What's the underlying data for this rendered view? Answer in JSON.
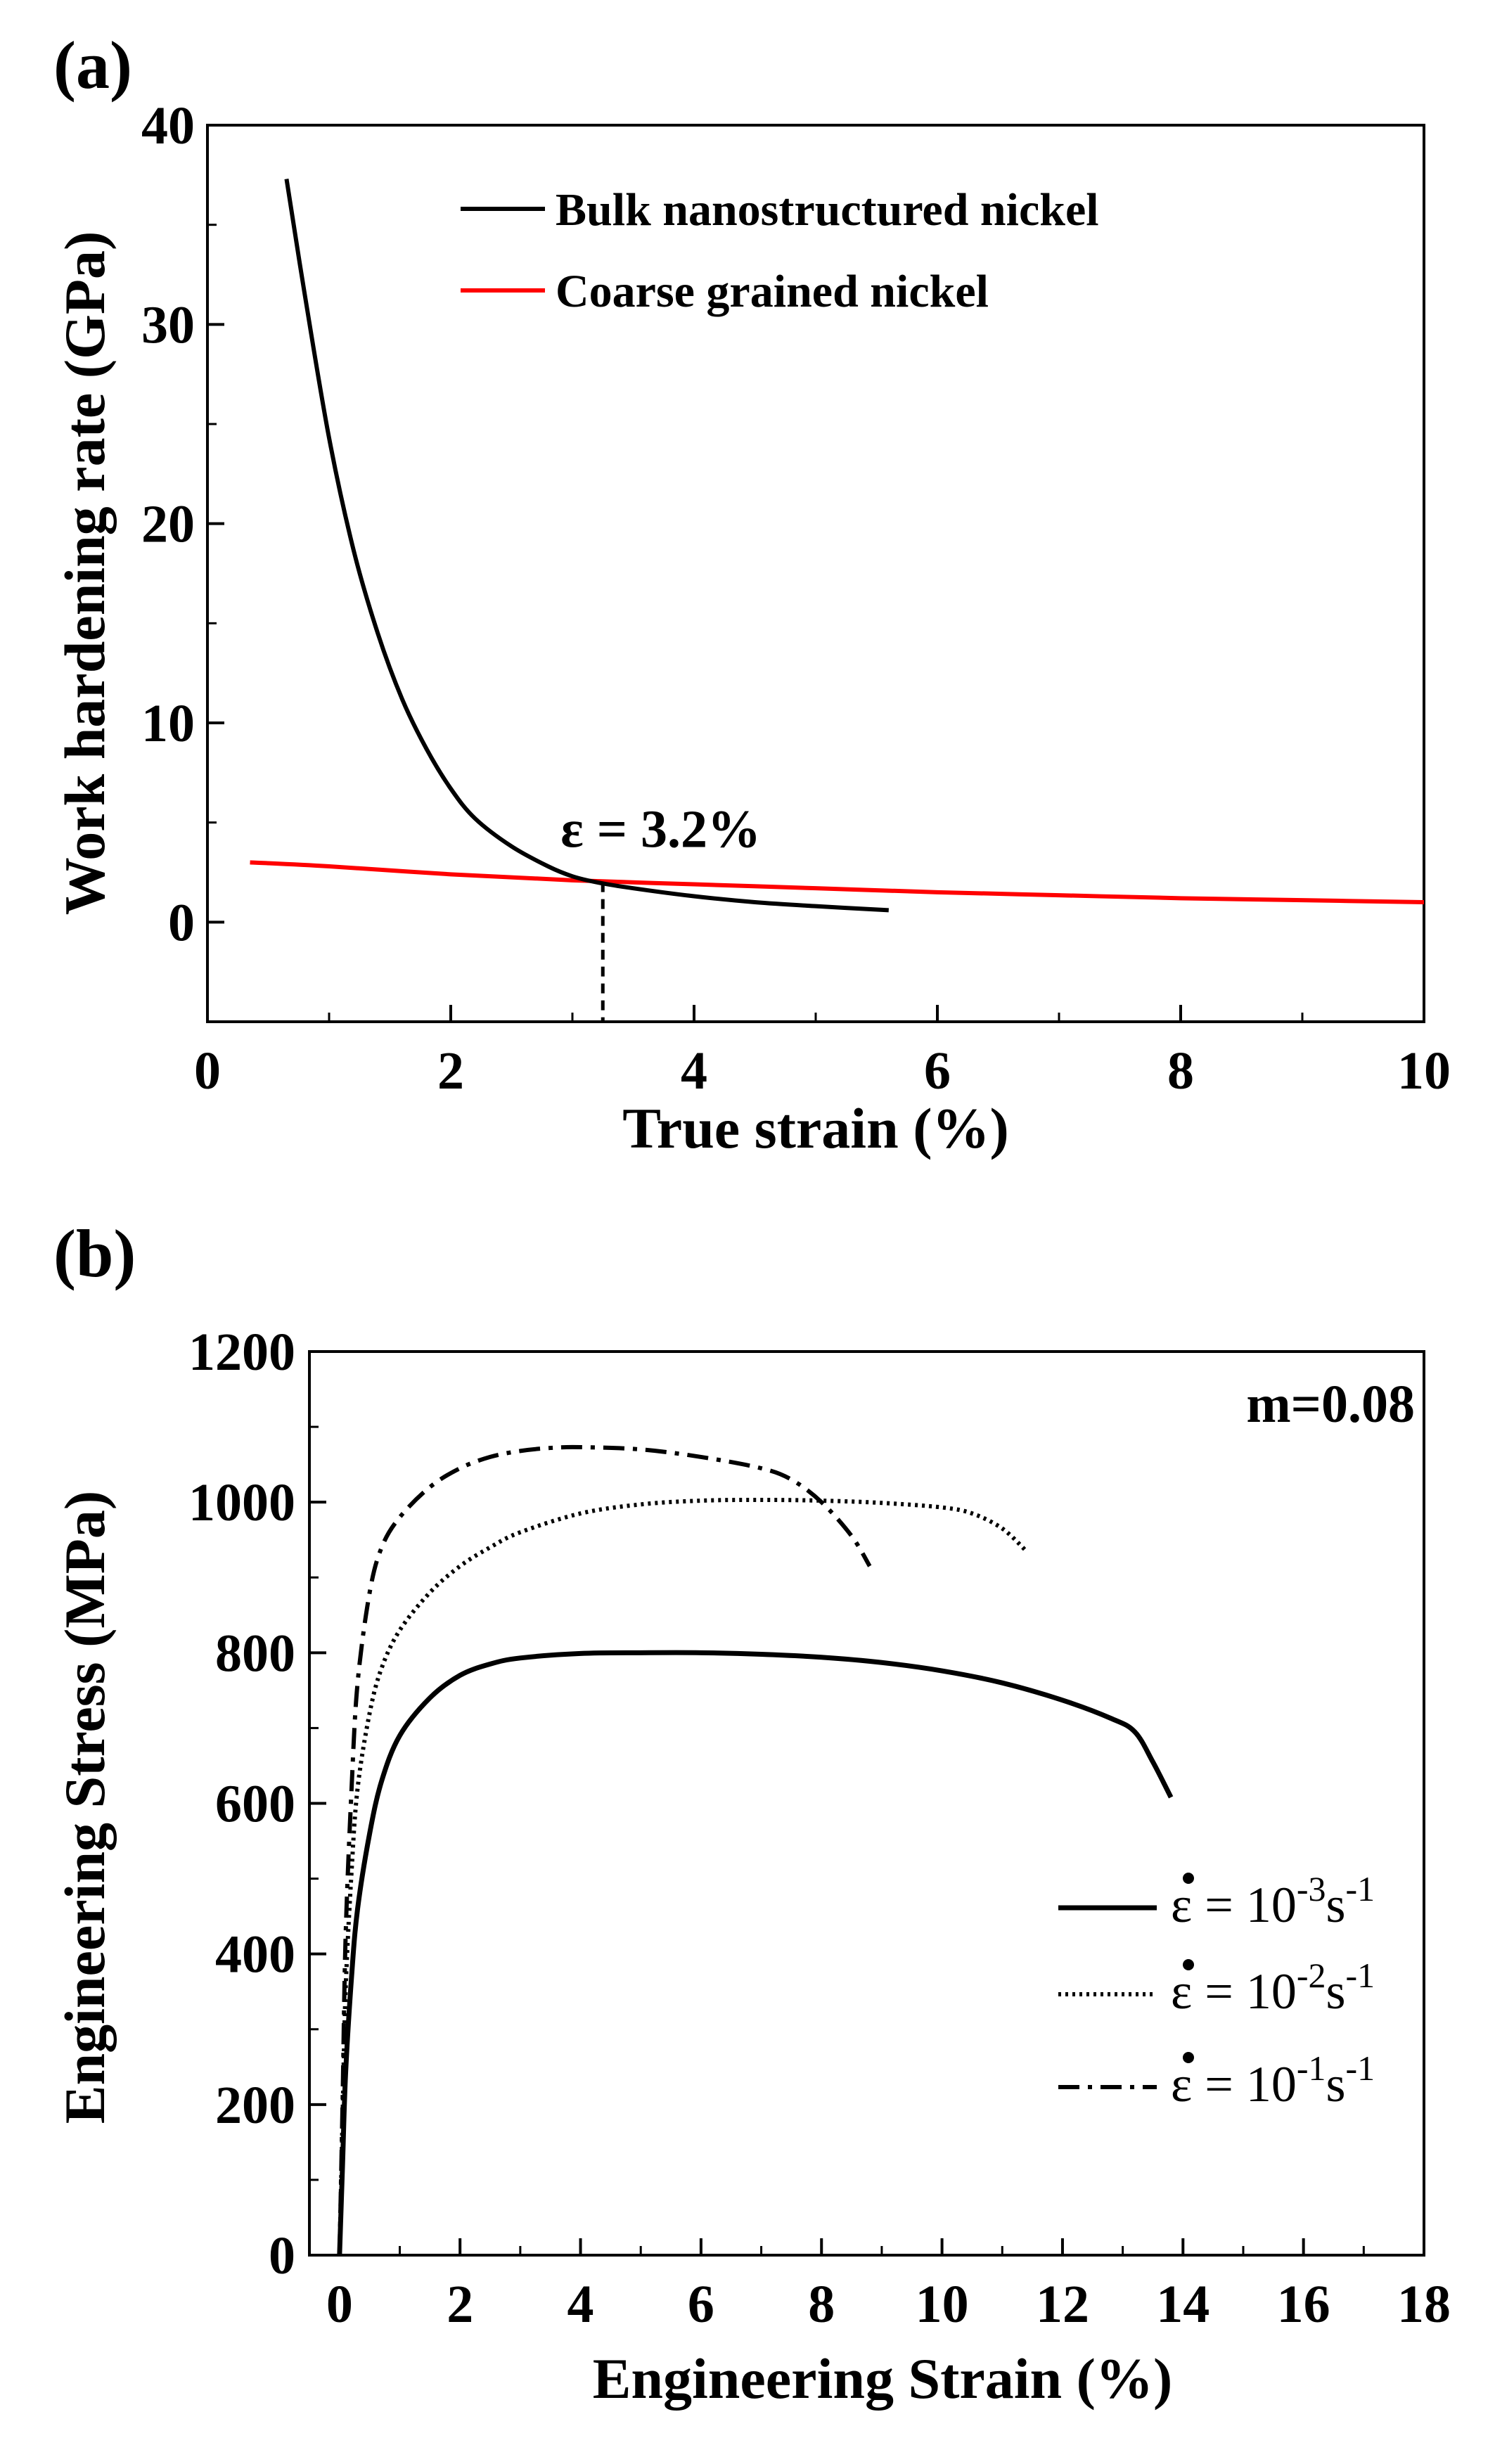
{
  "chart_data": [
    {
      "panel": "(a)",
      "type": "line",
      "xlabel": "True strain (%)",
      "ylabel": "Work hardening rate (GPa)",
      "xlim": [
        0,
        10
      ],
      "ylim": [
        -5,
        40
      ],
      "xticks": [
        0,
        2,
        4,
        6,
        8,
        10
      ],
      "yticks": [
        0,
        10,
        20,
        30,
        40
      ],
      "legend": "top-center",
      "series": [
        {
          "name": "Bulk nanostructured nickel",
          "color": "#000000",
          "x": [
            0.65,
            0.8,
            1.0,
            1.2,
            1.4,
            1.6,
            1.8,
            2.0,
            2.2,
            2.5,
            2.8,
            3.0,
            3.2,
            3.5,
            4.0,
            4.5,
            5.0,
            5.6
          ],
          "y": [
            37.3,
            31.5,
            24.3,
            18.7,
            14.5,
            11.2,
            8.7,
            6.7,
            5.2,
            3.8,
            2.8,
            2.3,
            2.0,
            1.7,
            1.3,
            1.0,
            0.8,
            0.6
          ]
        },
        {
          "name": "Coarse grained nickel",
          "color": "#ff0000",
          "x": [
            0.35,
            1.0,
            2.0,
            3.0,
            4.0,
            5.0,
            6.0,
            7.0,
            8.0,
            9.0,
            10.0
          ],
          "y": [
            3.0,
            2.8,
            2.4,
            2.1,
            1.9,
            1.7,
            1.5,
            1.35,
            1.2,
            1.1,
            1.0
          ]
        }
      ],
      "annotation": {
        "text": "ε = 3.2%",
        "x": 3.25,
        "y": 2.0
      }
    },
    {
      "panel": "(b)",
      "type": "line",
      "xlabel": "Engineering Strain (%)",
      "ylabel": "Engineering  Stress (MPa)",
      "xlim": [
        -0.5,
        18
      ],
      "ylim": [
        0,
        1200
      ],
      "xticks": [
        0,
        2,
        4,
        6,
        8,
        10,
        12,
        14,
        16,
        18
      ],
      "yticks": [
        0,
        200,
        400,
        600,
        800,
        1000,
        1200
      ],
      "legend": "right",
      "annotation": "m=0.08",
      "series": [
        {
          "name": "ε̇ = 10⁻³s⁻¹",
          "rate_label": {
            "prefix": "ε = 10",
            "exp": "-3",
            "unit": "s",
            "unit_exp": "-1"
          },
          "style": "solid",
          "x": [
            0,
            0.05,
            0.1,
            0.2,
            0.3,
            0.5,
            0.7,
            1.0,
            1.5,
            2.0,
            2.5,
            3.0,
            4.0,
            5.0,
            6.0,
            7.0,
            8.0,
            9.0,
            10.0,
            11.0,
            12.0,
            12.8,
            13.2,
            13.5,
            13.8
          ],
          "y": [
            0,
            120,
            240,
            370,
            460,
            560,
            630,
            690,
            740,
            770,
            785,
            793,
            799,
            800,
            800,
            798,
            794,
            787,
            776,
            760,
            737,
            713,
            695,
            655,
            608
          ]
        },
        {
          "name": "ε̇ = 10⁻²s⁻¹",
          "rate_label": {
            "prefix": "ε = 10",
            "exp": "-2",
            "unit": "s",
            "unit_exp": "-1"
          },
          "style": "dotted",
          "x": [
            0,
            0.05,
            0.1,
            0.2,
            0.3,
            0.5,
            0.7,
            1.0,
            1.5,
            2.0,
            2.5,
            3.0,
            4.0,
            5.0,
            6.0,
            7.0,
            8.0,
            9.0,
            10.0,
            10.5,
            11.0,
            11.4
          ],
          "y": [
            0,
            180,
            350,
            510,
            620,
            720,
            780,
            830,
            880,
            915,
            940,
            960,
            985,
            997,
            1002,
            1003,
            1002,
            999,
            993,
            985,
            965,
            935
          ]
        },
        {
          "name": "ε̇ = 10⁻¹s⁻¹",
          "rate_label": {
            "prefix": "ε = 10",
            "exp": "-1",
            "unit": "s",
            "unit_exp": "-1"
          },
          "style": "dash-dot",
          "x": [
            0,
            0.05,
            0.1,
            0.2,
            0.3,
            0.5,
            0.7,
            1.0,
            1.5,
            2.0,
            2.5,
            3.0,
            3.5,
            4.0,
            5.0,
            6.0,
            7.0,
            7.5,
            8.0,
            8.5,
            8.8
          ],
          "y": [
            0,
            200,
            420,
            620,
            760,
            880,
            940,
            980,
            1020,
            1045,
            1060,
            1068,
            1072,
            1073,
            1070,
            1060,
            1045,
            1030,
            1000,
            955,
            915
          ]
        }
      ]
    }
  ],
  "panel_labels": [
    "(a)",
    "(b)"
  ]
}
